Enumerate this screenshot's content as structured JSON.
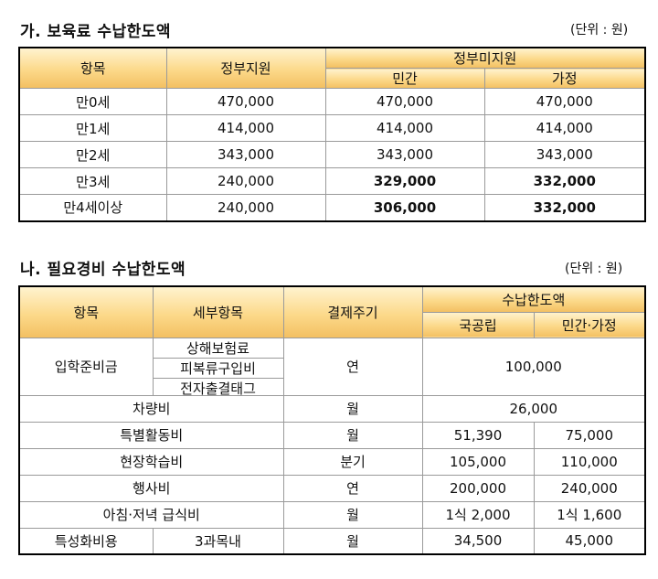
{
  "section1": {
    "title": "가. 보육료 수납한도액",
    "unit": "(단위 : 원)",
    "headers": {
      "item": "항목",
      "gov_support": "정부지원",
      "gov_nonsupport": "정부미지원",
      "private": "민간",
      "home": "가정"
    },
    "rows": [
      {
        "item": "만0세",
        "gov": "470,000",
        "private": "470,000",
        "home": "470,000"
      },
      {
        "item": "만1세",
        "gov": "414,000",
        "private": "414,000",
        "home": "414,000"
      },
      {
        "item": "만2세",
        "gov": "343,000",
        "private": "343,000",
        "home": "343,000"
      },
      {
        "item": "만3세",
        "gov": "240,000",
        "private": "329,000",
        "home": "332,000"
      },
      {
        "item": "만4세이상",
        "gov": "240,000",
        "private": "306,000",
        "home": "332,000"
      }
    ]
  },
  "section2": {
    "title": "나. 필요경비 수납한도액",
    "unit": "(단위 : 원)",
    "headers": {
      "item": "항목",
      "subitem": "세부항목",
      "cycle": "결제주기",
      "limit": "수납한도액",
      "public": "국공립",
      "private_home": "민간·가정"
    },
    "admission": {
      "item": "입학준비금",
      "subitems": [
        "상해보험료",
        "피복류구입비",
        "전자출결태그"
      ],
      "cycle": "연",
      "amount": "100,000"
    },
    "vehicle": {
      "item": "차량비",
      "cycle": "월",
      "amount": "26,000"
    },
    "rows": [
      {
        "item": "특별활동비",
        "cycle": "월",
        "public": "51,390",
        "private": "75,000"
      },
      {
        "item": "현장학습비",
        "cycle": "분기",
        "public": "105,000",
        "private": "110,000"
      },
      {
        "item": "행사비",
        "cycle": "연",
        "public": "200,000",
        "private": "240,000"
      },
      {
        "item": "아침·저녁 급식비",
        "cycle": "월",
        "public": "1식 2,000",
        "private": "1식 1,600"
      }
    ],
    "special": {
      "item": "특성화비용",
      "subitem": "3과목내",
      "cycle": "월",
      "public": "34,500",
      "private": "45,000"
    }
  }
}
